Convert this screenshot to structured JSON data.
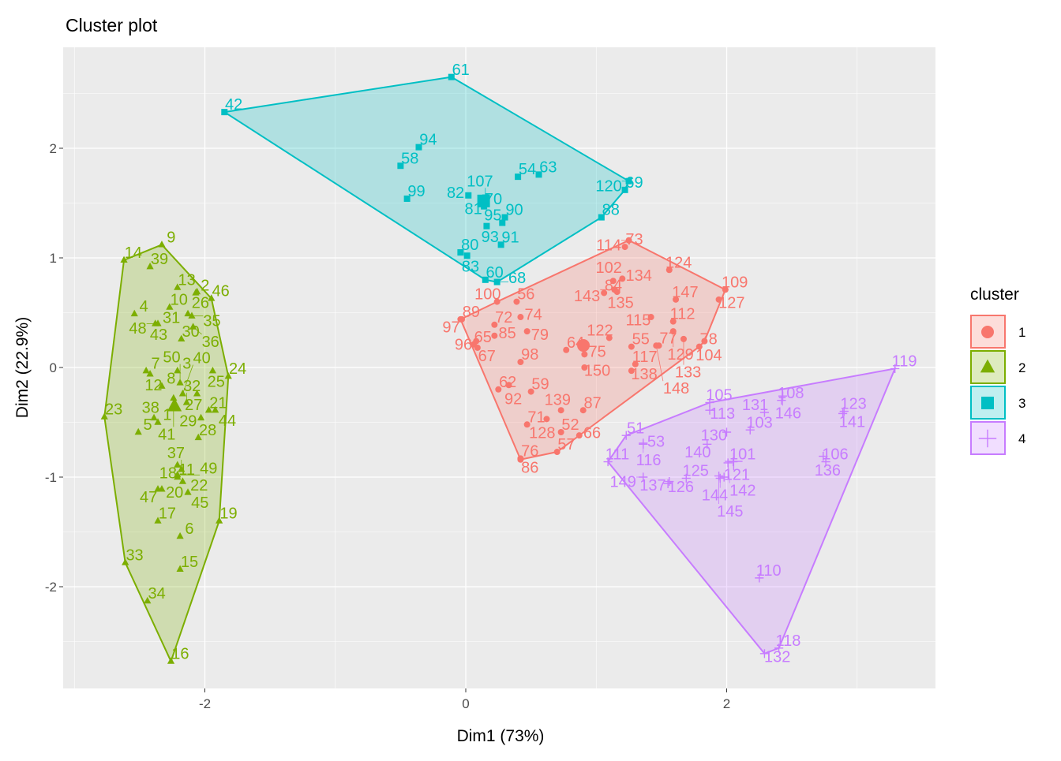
{
  "chart_data": {
    "type": "scatter",
    "title": "Cluster plot",
    "xlabel": "Dim1 (73%)",
    "ylabel": "Dim2 (22.9%)",
    "xlim": [
      -3.05,
      3.6
    ],
    "ylim": [
      -2.92,
      2.93
    ],
    "xticks": [
      -2,
      0,
      2
    ],
    "yticks": [
      -2,
      -1,
      0,
      1,
      2
    ],
    "grid": true,
    "legend": {
      "title": "cluster",
      "position": "right",
      "entries": [
        "1",
        "2",
        "3",
        "4"
      ]
    },
    "colors": {
      "1": "#F8766D",
      "2": "#7CAE00",
      "3": "#00BFC4",
      "4": "#C77CFF"
    },
    "shapes": {
      "1": "circle",
      "2": "triangle",
      "3": "square",
      "4": "plus"
    },
    "clusters": [
      {
        "name": "1",
        "points": [
          [
            52,
            0.73,
            -0.59
          ],
          [
            55,
            1.27,
            0.19
          ],
          [
            56,
            0.39,
            0.6
          ],
          [
            57,
            0.7,
            -0.77
          ],
          [
            59,
            0.5,
            -0.22
          ],
          [
            62,
            0.25,
            -0.2
          ],
          [
            64,
            0.77,
            0.16
          ],
          [
            65,
            0.06,
            0.21
          ],
          [
            66,
            0.87,
            -0.62
          ],
          [
            67,
            0.09,
            0.18
          ],
          [
            71,
            0.47,
            -0.52
          ],
          [
            72,
            0.22,
            0.39
          ],
          [
            73,
            1.22,
            1.1
          ],
          [
            74,
            0.42,
            0.46
          ],
          [
            75,
            0.91,
            0.12
          ],
          [
            76,
            0.42,
            -0.83
          ],
          [
            77,
            1.48,
            0.2
          ],
          [
            78,
            1.79,
            0.19
          ],
          [
            79,
            0.47,
            0.33
          ],
          [
            84,
            1.06,
            0.68
          ],
          [
            85,
            0.22,
            0.29
          ],
          [
            86,
            0.42,
            -0.84
          ],
          [
            87,
            0.9,
            -0.39
          ],
          [
            89,
            -0.03,
            0.44
          ],
          [
            92,
            0.33,
            -0.16
          ],
          [
            96,
            0.08,
            0.24
          ],
          [
            97,
            -0.04,
            0.44
          ],
          [
            98,
            0.42,
            0.05
          ],
          [
            100,
            0.24,
            0.6
          ],
          [
            102,
            1.13,
            0.79
          ],
          [
            104,
            1.83,
            0.24
          ],
          [
            109,
            1.99,
            0.71
          ],
          [
            112,
            1.59,
            0.42
          ],
          [
            114,
            1.25,
            1.16
          ],
          [
            115,
            1.42,
            0.46
          ],
          [
            117,
            1.3,
            0.03
          ],
          [
            122,
            1.1,
            0.27
          ],
          [
            124,
            1.56,
            0.89
          ],
          [
            127,
            1.94,
            0.62
          ],
          [
            128,
            0.62,
            -0.47
          ],
          [
            129,
            1.59,
            0.33
          ],
          [
            133,
            1.67,
            0.26
          ],
          [
            134,
            1.2,
            0.81
          ],
          [
            135,
            1.16,
            0.69
          ],
          [
            138,
            1.27,
            -0.03
          ],
          [
            139,
            0.73,
            -0.39
          ],
          [
            143,
            1.14,
            0.71
          ],
          [
            147,
            1.61,
            0.62
          ],
          [
            148,
            1.46,
            0.2
          ],
          [
            150,
            0.91,
            0.0
          ]
        ]
      },
      {
        "name": "2",
        "points": [
          [
            1,
            -2.36,
            -0.5
          ],
          [
            2,
            -2.07,
            0.68
          ],
          [
            3,
            -2.21,
            -0.03
          ],
          [
            4,
            -2.54,
            0.49
          ],
          [
            5,
            -2.51,
            -0.59
          ],
          [
            6,
            -2.19,
            -1.54
          ],
          [
            7,
            -2.45,
            -0.03
          ],
          [
            8,
            -2.33,
            -0.17
          ],
          [
            9,
            -2.33,
            1.12
          ],
          [
            10,
            -2.27,
            0.55
          ],
          [
            11,
            -2.21,
            -1.0
          ],
          [
            12,
            -2.42,
            -0.06
          ],
          [
            13,
            -2.21,
            0.73
          ],
          [
            14,
            -2.62,
            0.98
          ],
          [
            15,
            -2.19,
            -1.84
          ],
          [
            16,
            -2.26,
            -2.68
          ],
          [
            17,
            -2.36,
            -1.4
          ],
          [
            18,
            -2.21,
            -0.89
          ],
          [
            19,
            -1.89,
            -1.4
          ],
          [
            20,
            -2.33,
            -1.11
          ],
          [
            21,
            -1.97,
            -0.39
          ],
          [
            22,
            -2.17,
            -1.04
          ],
          [
            23,
            -2.77,
            -0.45
          ],
          [
            24,
            -1.82,
            -0.08
          ],
          [
            25,
            -1.94,
            -0.03
          ],
          [
            26,
            -2.06,
            0.69
          ],
          [
            27,
            -2.06,
            -0.24
          ],
          [
            28,
            -2.05,
            -0.64
          ],
          [
            29,
            -2.03,
            -0.46
          ],
          [
            30,
            -2.18,
            0.26
          ],
          [
            31,
            -2.13,
            0.49
          ],
          [
            32,
            -2.14,
            -0.32
          ],
          [
            33,
            -2.61,
            -1.78
          ],
          [
            34,
            -2.44,
            -2.13
          ],
          [
            35,
            -2.1,
            0.47
          ],
          [
            36,
            -2.09,
            0.37
          ],
          [
            37,
            -2.18,
            -0.93
          ],
          [
            38,
            -2.39,
            -0.46
          ],
          [
            39,
            -2.42,
            0.92
          ],
          [
            40,
            -2.17,
            -0.24
          ],
          [
            41,
            -2.24,
            -0.28
          ],
          [
            43,
            -2.38,
            0.4
          ],
          [
            44,
            -1.92,
            -0.39
          ],
          [
            45,
            -2.13,
            -1.14
          ],
          [
            46,
            -1.95,
            0.63
          ],
          [
            47,
            -2.36,
            -1.11
          ],
          [
            48,
            -2.36,
            0.4
          ],
          [
            49,
            -2.21,
            -0.98
          ],
          [
            50,
            -2.19,
            -0.14
          ]
        ]
      },
      {
        "name": "3",
        "points": [
          [
            42,
            -1.85,
            2.33
          ],
          [
            54,
            0.4,
            1.74
          ],
          [
            58,
            -0.5,
            1.84
          ],
          [
            60,
            0.15,
            0.8
          ],
          [
            61,
            -0.11,
            2.65
          ],
          [
            63,
            0.56,
            1.76
          ],
          [
            68,
            0.24,
            0.78
          ],
          [
            69,
            1.22,
            1.62
          ],
          [
            70,
            0.14,
            1.47
          ],
          [
            80,
            -0.04,
            1.05
          ],
          [
            81,
            0.13,
            1.52
          ],
          [
            82,
            0.02,
            1.57
          ],
          [
            83,
            0.01,
            1.02
          ],
          [
            88,
            1.04,
            1.37
          ],
          [
            90,
            0.3,
            1.37
          ],
          [
            91,
            0.27,
            1.12
          ],
          [
            93,
            0.16,
            1.29
          ],
          [
            94,
            -0.36,
            2.01
          ],
          [
            95,
            0.28,
            1.32
          ],
          [
            99,
            -0.45,
            1.54
          ],
          [
            107,
            0.15,
            1.55
          ],
          [
            120,
            1.25,
            1.7
          ]
        ]
      },
      {
        "name": "4",
        "points": [
          [
            51,
            1.23,
            -0.62
          ],
          [
            53,
            1.36,
            -0.7
          ],
          [
            101,
            2.05,
            -0.86
          ],
          [
            103,
            2.18,
            -0.57
          ],
          [
            105,
            1.87,
            -0.32
          ],
          [
            106,
            2.76,
            -0.86
          ],
          [
            108,
            2.42,
            -0.3
          ],
          [
            110,
            2.25,
            -1.92
          ],
          [
            111,
            1.09,
            -0.86
          ],
          [
            113,
            1.87,
            -0.39
          ],
          [
            116,
            1.36,
            -0.69
          ],
          [
            118,
            2.4,
            -2.56
          ],
          [
            119,
            3.29,
            -0.01
          ],
          [
            121,
            1.98,
            -1.0
          ],
          [
            123,
            2.9,
            -0.4
          ],
          [
            125,
            1.69,
            -1.01
          ],
          [
            126,
            1.55,
            -1.06
          ],
          [
            130,
            2.0,
            -0.59
          ],
          [
            131,
            2.29,
            -0.41
          ],
          [
            132,
            2.29,
            -2.61
          ],
          [
            136,
            2.74,
            -0.81
          ],
          [
            137,
            1.56,
            -1.04
          ],
          [
            140,
            1.85,
            -0.7
          ],
          [
            141,
            2.89,
            -0.42
          ],
          [
            142,
            2.01,
            -0.87
          ],
          [
            144,
            1.95,
            -1.01
          ],
          [
            145,
            1.94,
            -0.99
          ],
          [
            146,
            2.43,
            -0.26
          ],
          [
            149,
            1.36,
            -1.0
          ]
        ]
      }
    ]
  }
}
